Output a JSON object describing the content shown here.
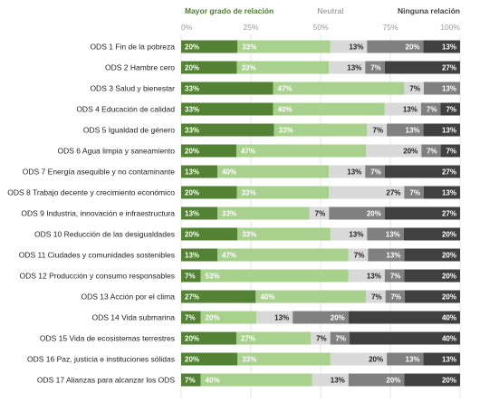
{
  "chart_data": {
    "type": "bar",
    "stacked": true,
    "orientation": "horizontal",
    "title": "",
    "xlabel": "",
    "ylabel": "",
    "xlim": [
      0,
      100
    ],
    "x_ticks": [
      "0%",
      "25%",
      "50%",
      "75%",
      "100%"
    ],
    "grid": true,
    "legend_placement": "top",
    "scale_labels": [
      {
        "text": "Mayor grado de relación",
        "color": "#4a7f2a"
      },
      {
        "text": "Neutral",
        "color": "#a8a8a8"
      },
      {
        "text": "Ninguna relación",
        "color": "#444444"
      }
    ],
    "colors": [
      "#548235",
      "#a9d18e",
      "#d9d9d9",
      "#808080",
      "#404040"
    ],
    "categories": [
      "ODS 1 Fin de la pobreza",
      "ODS 2 Hambre cero",
      "ODS 3 Salud y bienestar",
      "ODS 4 Educación de calidad",
      "ODS 5 Igualdad de género",
      "ODS 6 Agua limpia y saneamiento",
      "ODS 7 Energía asequible y no contaminante",
      "ODS 8 Trabajo decente y crecimiento económico",
      "ODS 9 Industria, innovación e infraestructura",
      "ODS 10 Reducción de las desigualdades",
      "ODS 11 Ciudades y comunidades sostenibles",
      "ODS 12 Producción y consumo responsables",
      "ODS 13 Acción por el clima",
      "ODS 14 Vida submarina",
      "ODS 15 Vida de ecosistemas terrestres",
      "ODS 16 Paz, justicia e instituciones sólidas",
      "ODS 17 Alianzas para alcanzar los ODS"
    ],
    "series": [
      {
        "values": [
          20,
          20,
          33,
          33,
          33,
          20,
          13,
          20,
          13,
          20,
          13,
          7,
          27,
          7,
          20,
          20,
          7
        ]
      },
      {
        "values": [
          33,
          33,
          47,
          40,
          33,
          47,
          40,
          33,
          33,
          33,
          47,
          53,
          40,
          20,
          27,
          33,
          40
        ]
      },
      {
        "values": [
          13,
          13,
          7,
          13,
          7,
          20,
          13,
          27,
          7,
          13,
          7,
          13,
          7,
          13,
          7,
          20,
          13
        ]
      },
      {
        "values": [
          20,
          7,
          13,
          7,
          13,
          7,
          7,
          7,
          20,
          13,
          13,
          7,
          7,
          20,
          7,
          13,
          20
        ]
      },
      {
        "values": [
          13,
          27,
          0,
          7,
          13,
          7,
          27,
          13,
          27,
          20,
          20,
          20,
          20,
          40,
          40,
          13,
          20
        ]
      }
    ],
    "data_labels": [
      [
        "20%",
        "33%",
        "13%",
        "20%",
        "13%"
      ],
      [
        "20%",
        "33%",
        "13%",
        "7%",
        "27%"
      ],
      [
        "33%",
        "47%",
        "7%",
        "13%",
        ""
      ],
      [
        "33%",
        "40%",
        "13%",
        "7%",
        "7%"
      ],
      [
        "33%",
        "33%",
        "7%",
        "13%",
        "13%"
      ],
      [
        "20%",
        "47%",
        "20%",
        "7%",
        "7%"
      ],
      [
        "13%",
        "40%",
        "13%",
        "7%",
        "27%"
      ],
      [
        "20%",
        "33%",
        "27%",
        "7%",
        "13%"
      ],
      [
        "13%",
        "33%",
        "7%",
        "20%",
        "27%"
      ],
      [
        "20%",
        "33%",
        "13%",
        "13%",
        "20%"
      ],
      [
        "13%",
        "47%",
        "7%",
        "13%",
        "20%"
      ],
      [
        "7%",
        "53%",
        "13%",
        "7%",
        "20%"
      ],
      [
        "27%",
        "40%",
        "7%",
        "7%",
        "20%"
      ],
      [
        "7%",
        "20%",
        "13%",
        "20%",
        "40%"
      ],
      [
        "20%",
        "27%",
        "7%",
        "7%",
        "40%"
      ],
      [
        "20%",
        "33%",
        "20%",
        "13%",
        "13%"
      ],
      [
        "7%",
        "40%",
        "13%",
        "20%",
        "20%"
      ]
    ]
  }
}
